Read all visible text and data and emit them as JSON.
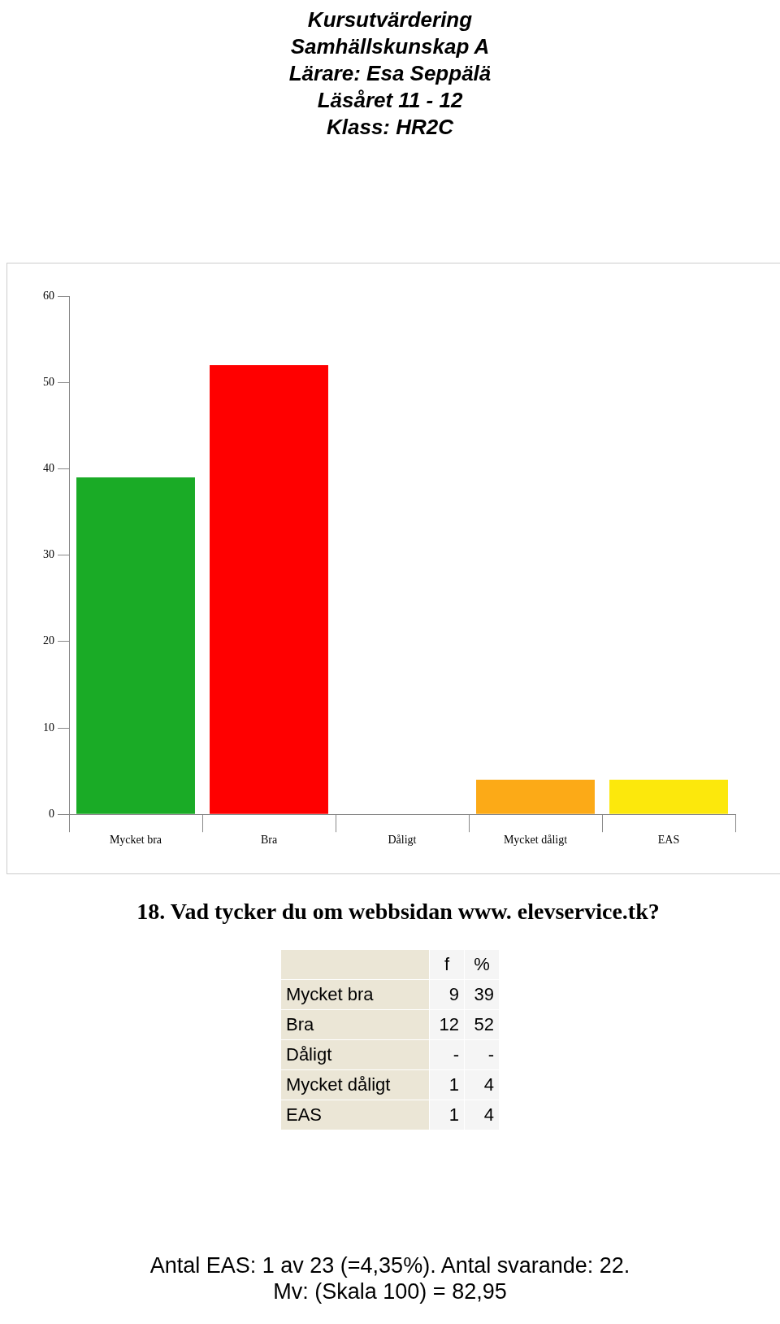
{
  "chart_data": {
    "type": "bar",
    "title": "Kursutvärdering\nSamhällskunskap A\nLärare: Esa Seppälä\nLäsåret 11 - 12\nKlass: HR2C",
    "categories": [
      "Mycket bra",
      "Bra",
      "Dåligt",
      "Mycket dåligt",
      "EAS"
    ],
    "values": [
      39,
      52,
      null,
      4,
      4
    ],
    "colors": [
      "#1aab26",
      "#ff0000",
      "#cccccc",
      "#fcaa17",
      "#fce80c"
    ],
    "ylim": [
      0,
      60
    ],
    "yticks": [
      0,
      10,
      20,
      30,
      40,
      50,
      60
    ],
    "grid": false,
    "annotations": [
      "18. Vad tycker du om webbsidan www. elevservice.tk?",
      "f",
      "%",
      "9",
      "39",
      "12",
      "52",
      "-",
      "-",
      "1",
      "4",
      "1",
      "4",
      "Antal EAS: 1 av 23 (=4,35%). Antal svarande:  22.",
      "Mv: (Skala 100) = 82,95"
    ]
  }
}
